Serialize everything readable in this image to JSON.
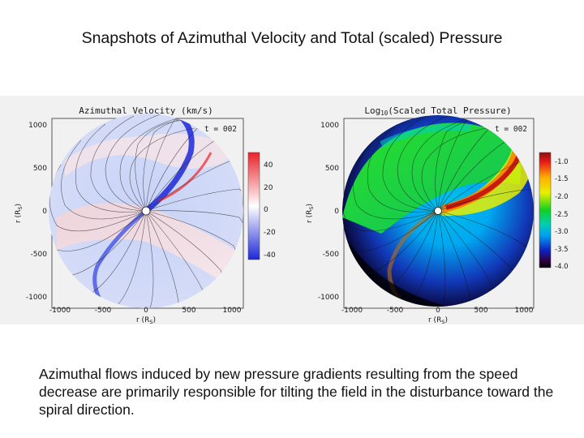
{
  "title": "Snapshots of Azimuthal Velocity and Total (scaled) Pressure",
  "caption": "Azimuthal flows induced by new pressure gradients resulting from the speed decrease are primarily responsible for tilting the field in the disturbance toward the spiral direction.",
  "left_plot": {
    "title": "Azimuthal Velocity (km/s)",
    "time_label": "t = 002",
    "x_label": "r (R",
    "x_label_sub": "S",
    "y_label": "r (R",
    "y_label_sub": "S",
    "x_ticks": [
      "-1000",
      "-500",
      "0",
      "500",
      "1000"
    ],
    "y_ticks": [
      "1000",
      "500",
      "0",
      "-500",
      "-1000"
    ],
    "colorbar_ticks": [
      "40",
      "20",
      "0",
      "-20",
      "-40"
    ],
    "colors": {
      "positive": "#e8232a",
      "zero": "#ffffff",
      "negative": "#1c28d8"
    }
  },
  "right_plot": {
    "title_prefix": "Log",
    "title_sub": "10",
    "title_suffix": "(Scaled Total Pressure)",
    "time_label": "t = 002",
    "x_label": "r (R",
    "x_label_sub": "S",
    "y_label": "r (R",
    "y_label_sub": "S",
    "x_ticks": [
      "-1000",
      "-500",
      "0",
      "500",
      "1000"
    ],
    "y_ticks": [
      "1000",
      "500",
      "0",
      "-500",
      "-1000"
    ],
    "colorbar_ticks": [
      "-1.0",
      "-1.5",
      "-2.0",
      "-2.5",
      "-3.0",
      "-3.5",
      "-4.0"
    ],
    "colors": {
      "high": "#8a1010",
      "mid_high": "#ffb000",
      "mid": "#10d020",
      "mid_low": "#00b0e0",
      "low": "#000000"
    }
  }
}
